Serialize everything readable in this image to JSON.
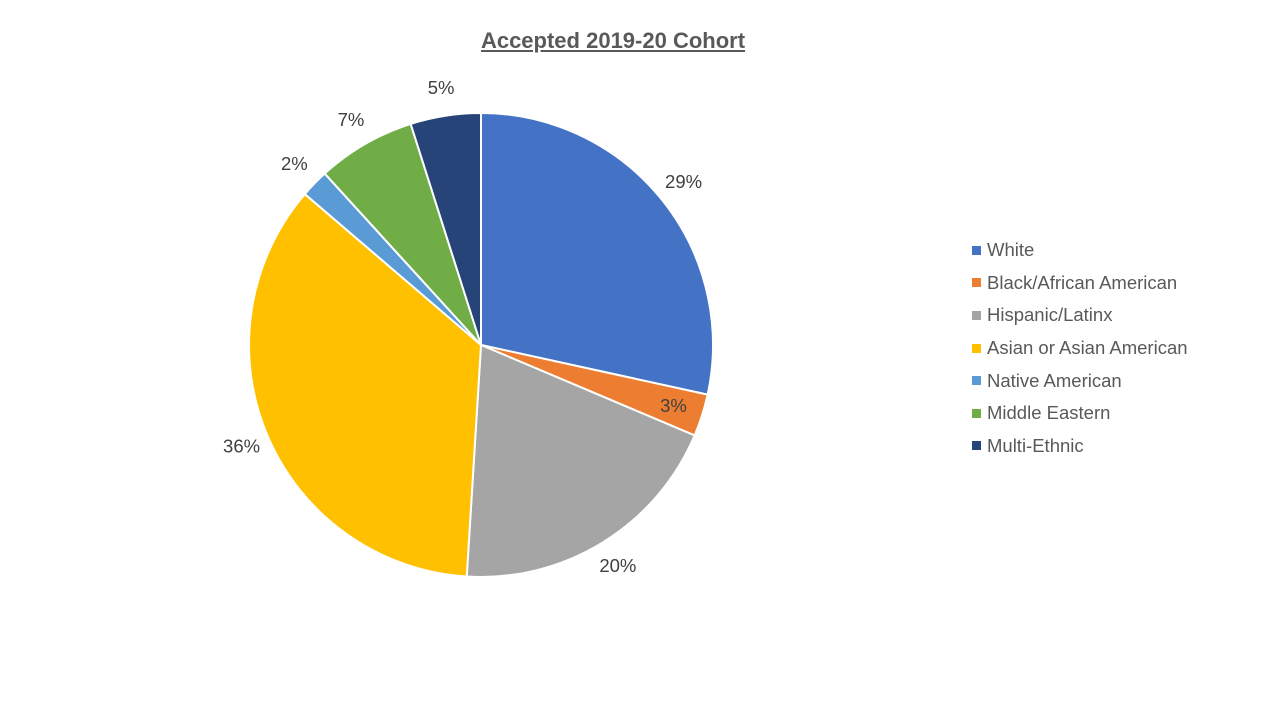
{
  "chart_data": {
    "type": "pie",
    "title": "Accepted 2019-20 Cohort",
    "categories": [
      "White",
      "Black/African American",
      "Hispanic/Latinx",
      "Asian or Asian American",
      "Native American",
      "Middle Eastern",
      "Multi-Ethnic"
    ],
    "values": [
      29,
      3,
      20,
      36,
      2,
      7,
      5
    ],
    "labels": [
      "29%",
      "3%",
      "20%",
      "36%",
      "2%",
      "7%",
      "5%"
    ],
    "colors": [
      "#4472C4",
      "#ED7D31",
      "#A5A5A5",
      "#FFC000",
      "#5B9BD5",
      "#70AD47",
      "#264478"
    ],
    "legend_position": "right",
    "start_angle": "top, clockwise"
  }
}
